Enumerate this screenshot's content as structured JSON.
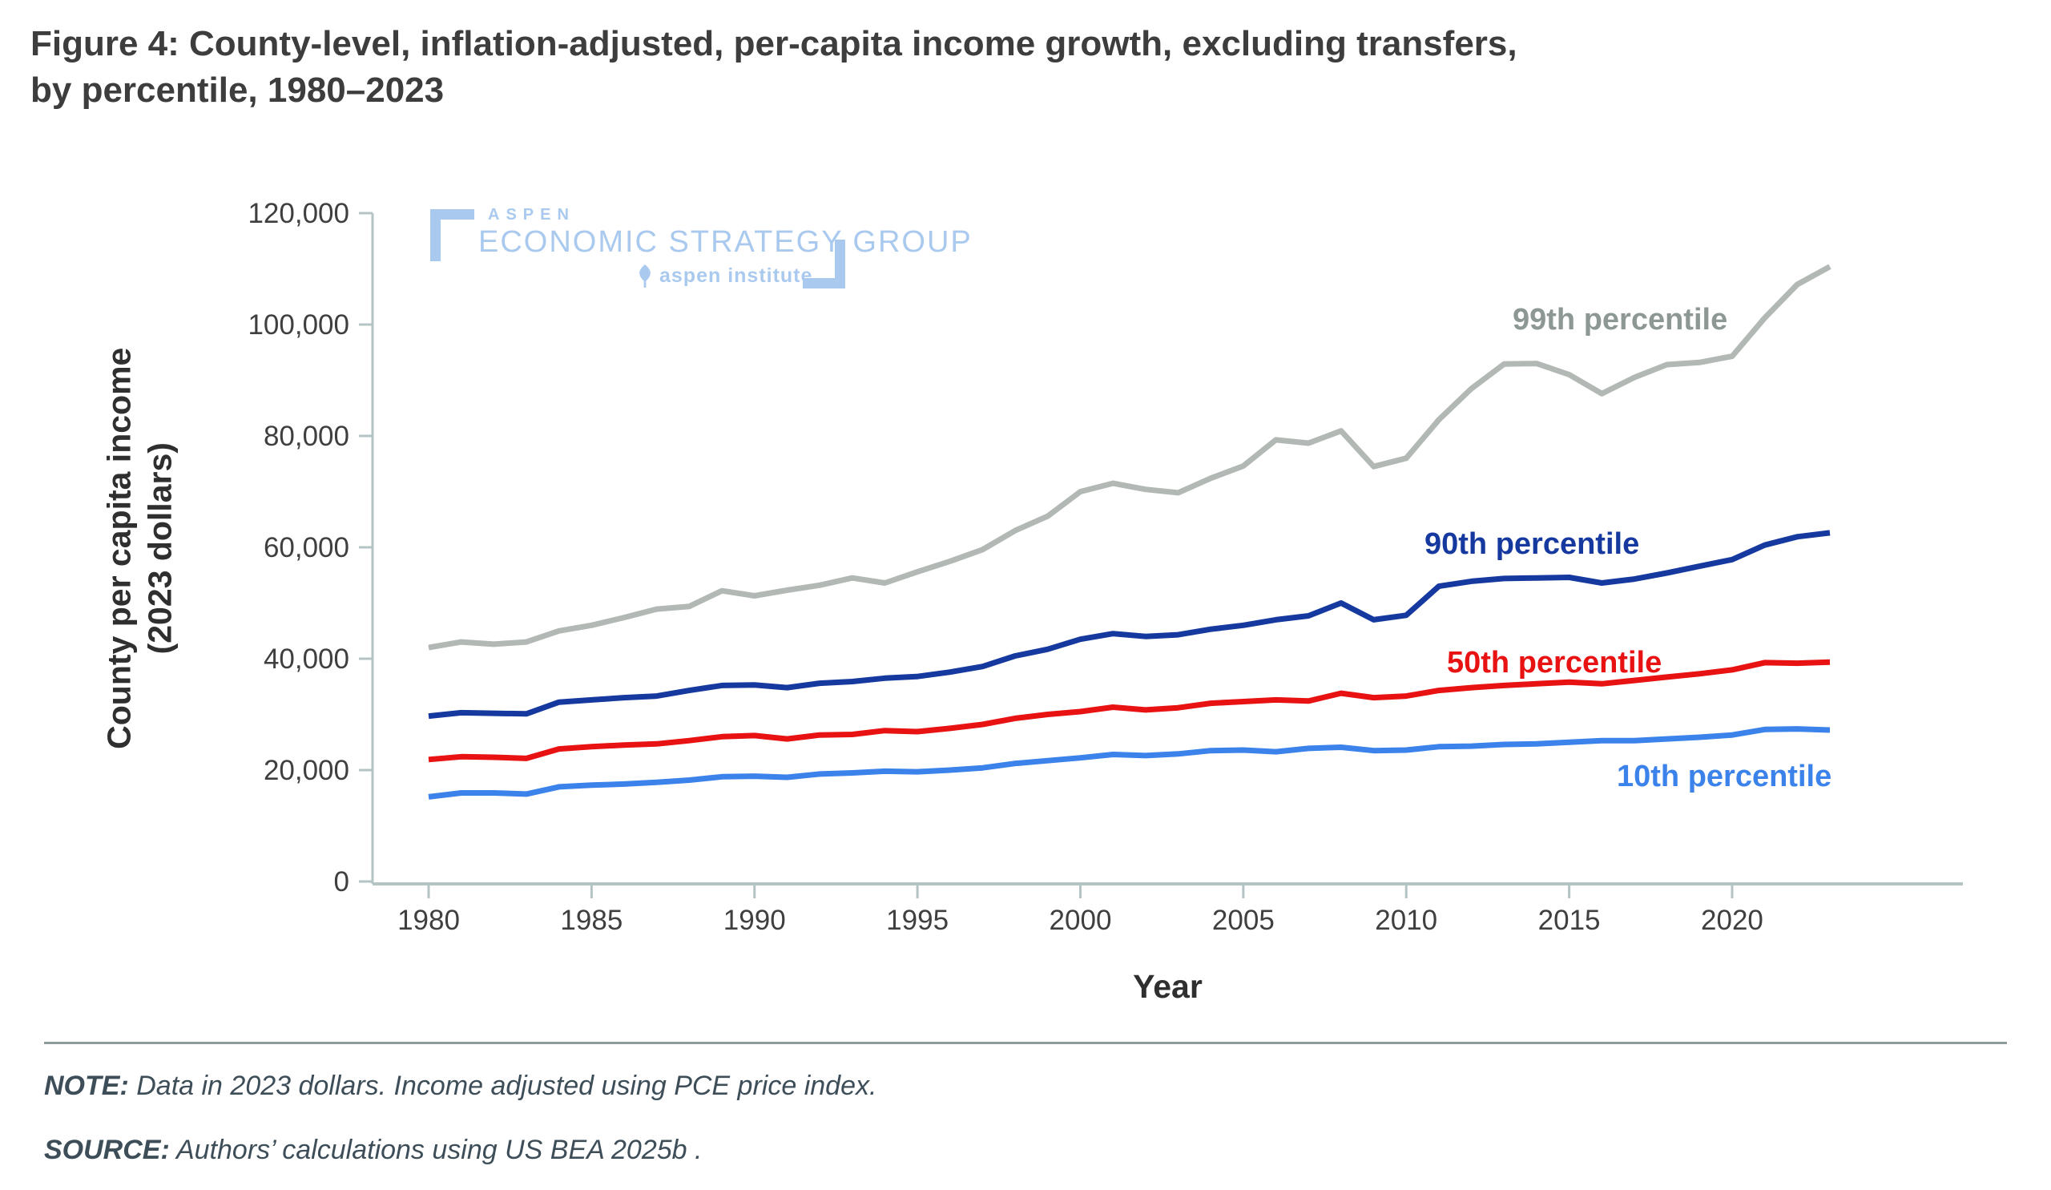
{
  "page": {
    "title_line1": "Figure 4: County-level, inflation-adjusted, per-capita income growth, excluding transfers,",
    "title_line2": "by percentile, 1980–2023"
  },
  "logo": {
    "aspen": "ASPEN",
    "group": "ECONOMIC STRATEGY GROUP",
    "institute": "aspen institute",
    "color": "#a9caee"
  },
  "note": {
    "label": "NOTE:",
    "text": "Data in 2023 dollars. Income adjusted using PCE price index."
  },
  "source": {
    "label": "SOURCE:",
    "text": "Authors’ calculations using US BEA 2025b ."
  },
  "chart_data": {
    "type": "line",
    "title": "",
    "xlabel": "Year",
    "ylabel_line1": "County per capita income",
    "ylabel_line2": "(2023 dollars)",
    "xlim": [
      1980,
      2023
    ],
    "ylim": [
      0,
      120000
    ],
    "grid": false,
    "legend_position": "inline-labels-right",
    "axis_color": "#b4c3c3",
    "tick_label_color": "#3f3f3f",
    "x_ticks": [
      1980,
      1985,
      1990,
      1995,
      2000,
      2005,
      2010,
      2015,
      2020
    ],
    "x_tick_labels": [
      "1980",
      "1985",
      "1990",
      "1995",
      "2000",
      "2005",
      "2010",
      "2015",
      "2020"
    ],
    "y_ticks": [
      0,
      20000,
      40000,
      60000,
      80000,
      100000,
      120000
    ],
    "y_tick_labels": [
      "0",
      "20,000",
      "40,000",
      "60,000",
      "80,000",
      "100,000",
      "120,000"
    ],
    "x": [
      1980,
      1981,
      1982,
      1983,
      1984,
      1985,
      1986,
      1987,
      1988,
      1989,
      1990,
      1991,
      1992,
      1993,
      1994,
      1995,
      1996,
      1997,
      1998,
      1999,
      2000,
      2001,
      2002,
      2003,
      2004,
      2005,
      2006,
      2007,
      2008,
      2009,
      2010,
      2011,
      2012,
      2013,
      2014,
      2015,
      2016,
      2017,
      2018,
      2019,
      2020,
      2021,
      2022,
      2023
    ],
    "series": [
      {
        "name": "99th percentile",
        "color": "#b2b8b4",
        "label_color": "#8d9894",
        "values": [
          42000,
          43000,
          42600,
          43000,
          45000,
          46000,
          47400,
          48900,
          49400,
          52200,
          51300,
          52300,
          53200,
          54500,
          53600,
          55600,
          57500,
          59600,
          63000,
          65600,
          70000,
          71500,
          70400,
          69800,
          72400,
          74600,
          79300,
          78700,
          80900,
          74500,
          76000,
          82900,
          88500,
          92900,
          93000,
          91000,
          87600,
          90500,
          92800,
          93200,
          94300,
          101200,
          107200,
          110400
        ]
      },
      {
        "name": "90th percentile",
        "color": "#15399e",
        "label_color": "#15399e",
        "values": [
          29700,
          30300,
          30200,
          30100,
          32200,
          32600,
          33000,
          33300,
          34300,
          35200,
          35300,
          34800,
          35600,
          35900,
          36500,
          36800,
          37600,
          38600,
          40500,
          41700,
          43500,
          44500,
          44000,
          44300,
          45300,
          46000,
          47000,
          47700,
          50000,
          47000,
          47800,
          53000,
          53900,
          54400,
          54500,
          54600,
          53600,
          54300,
          55400,
          56600,
          57800,
          60400,
          61900,
          62600
        ]
      },
      {
        "name": "50th percentile",
        "color": "#e81212",
        "label_color": "#e81212",
        "values": [
          21900,
          22400,
          22300,
          22100,
          23800,
          24200,
          24500,
          24700,
          25300,
          26000,
          26200,
          25600,
          26300,
          26400,
          27100,
          26900,
          27500,
          28200,
          29300,
          30000,
          30500,
          31300,
          30800,
          31200,
          32000,
          32300,
          32600,
          32400,
          33800,
          33000,
          33300,
          34300,
          34800,
          35200,
          35500,
          35800,
          35500,
          36100,
          36700,
          37300,
          38000,
          39300,
          39200,
          39400
        ]
      },
      {
        "name": "10th percentile",
        "color": "#3b82ea",
        "label_color": "#3b82ea",
        "values": [
          15200,
          15900,
          15900,
          15700,
          17000,
          17300,
          17500,
          17800,
          18200,
          18800,
          18900,
          18700,
          19300,
          19500,
          19800,
          19700,
          20000,
          20400,
          21200,
          21700,
          22200,
          22800,
          22600,
          22900,
          23500,
          23600,
          23300,
          23900,
          24100,
          23500,
          23600,
          24200,
          24300,
          24600,
          24700,
          25000,
          25300,
          25300,
          25600,
          25900,
          26300,
          27300,
          27400,
          27200
        ]
      }
    ]
  }
}
